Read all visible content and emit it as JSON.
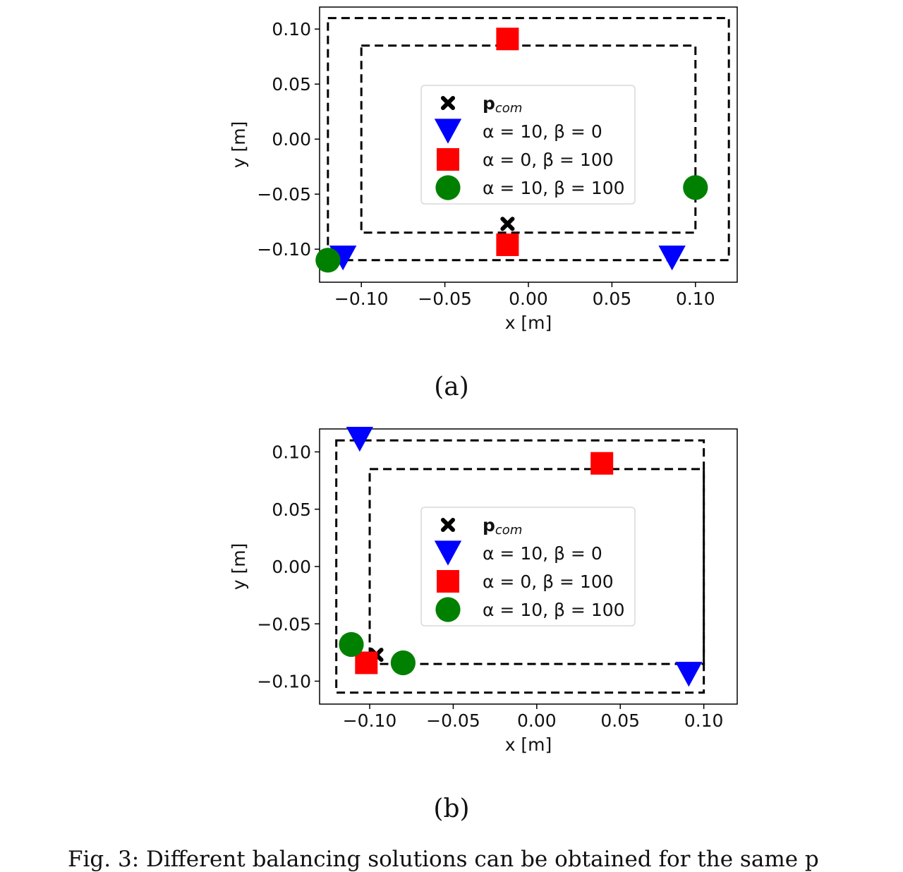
{
  "chart_data": [
    {
      "type": "scatter",
      "panel_label": "(a)",
      "xlabel": "x [m]",
      "ylabel": "y [m]",
      "xlim": [
        -0.125,
        0.125
      ],
      "ylim": [
        -0.13,
        0.12
      ],
      "xticks": [
        -0.1,
        -0.05,
        0.0,
        0.05,
        0.1
      ],
      "yticks": [
        -0.1,
        -0.05,
        0.0,
        0.05,
        0.1
      ],
      "xtick_labels": [
        "−0.10",
        "−0.05",
        "0.00",
        "0.05",
        "0.10"
      ],
      "ytick_labels": [
        "−0.10",
        "−0.05",
        "0.00",
        "0.05",
        "0.10"
      ],
      "legend_position": "center",
      "regions": [
        {
          "style": "dashed",
          "x": [
            -0.12,
            0.12
          ],
          "y": [
            -0.11,
            0.11
          ]
        },
        {
          "style": "dashed",
          "x": [
            -0.1,
            0.1
          ],
          "y": [
            -0.085,
            0.085
          ]
        }
      ],
      "series": [
        {
          "name": "p_com",
          "marker": "x",
          "color": "#000000",
          "points": [
            [
              -0.0125,
              -0.077
            ]
          ]
        },
        {
          "name": "α = 10, β = 0",
          "marker": "triangle-down",
          "color": "#0000ff",
          "points": [
            [
              -0.111,
              -0.108
            ],
            [
              0.086,
              -0.108
            ]
          ]
        },
        {
          "name": "α = 0, β = 100",
          "marker": "square",
          "color": "#ff0000",
          "points": [
            [
              -0.0125,
              0.091
            ],
            [
              -0.0125,
              -0.096
            ]
          ]
        },
        {
          "name": "α = 10, β = 100",
          "marker": "circle",
          "color": "#008000",
          "points": [
            [
              -0.12,
              -0.11
            ],
            [
              0.1,
              -0.044
            ]
          ]
        }
      ]
    },
    {
      "type": "scatter",
      "panel_label": "(b)",
      "xlabel": "x [m]",
      "ylabel": "y [m]",
      "xlim": [
        -0.13,
        0.12
      ],
      "ylim": [
        -0.12,
        0.12
      ],
      "xticks": [
        -0.1,
        -0.05,
        0.0,
        0.05,
        0.1
      ],
      "yticks": [
        -0.1,
        -0.05,
        0.0,
        0.05,
        0.1
      ],
      "xtick_labels": [
        "−0.10",
        "−0.05",
        "0.00",
        "0.05",
        "0.10"
      ],
      "ytick_labels": [
        "−0.10",
        "−0.05",
        "0.00",
        "0.05",
        "0.10"
      ],
      "legend_position": "center",
      "regions": [
        {
          "style": "dashed",
          "x": [
            -0.12,
            0.1
          ],
          "y": [
            -0.11,
            0.11
          ]
        },
        {
          "style": "dashed",
          "x": [
            -0.1,
            0.1
          ],
          "y": [
            -0.085,
            0.085
          ]
        }
      ],
      "series": [
        {
          "name": "p_com",
          "marker": "x",
          "color": "#000000",
          "points": [
            [
              -0.096,
              -0.077
            ]
          ]
        },
        {
          "name": "α = 10, β = 0",
          "marker": "triangle-down",
          "color": "#0000ff",
          "points": [
            [
              -0.106,
              0.111
            ],
            [
              0.091,
              -0.094
            ]
          ]
        },
        {
          "name": "α = 0, β = 100",
          "marker": "square",
          "color": "#ff0000",
          "points": [
            [
              -0.102,
              -0.084
            ],
            [
              0.039,
              0.09
            ]
          ]
        },
        {
          "name": "α = 10, β = 100",
          "marker": "circle",
          "color": "#008000",
          "points": [
            [
              -0.111,
              -0.068
            ],
            [
              -0.08,
              -0.084
            ]
          ]
        }
      ]
    }
  ],
  "legend": {
    "entries": [
      {
        "main": "p",
        "sub": "com",
        "marker": "x",
        "color": "#000000"
      },
      {
        "main": "α = 10, β = 0",
        "marker": "triangle-down",
        "color": "#0000ff"
      },
      {
        "main": "α = 0, β = 100",
        "marker": "square",
        "color": "#ff0000"
      },
      {
        "main": "α = 10, β = 100",
        "marker": "circle",
        "color": "#008000"
      }
    ]
  },
  "caption": "Fig. 3: Different balancing solutions can be obtained for the same p"
}
